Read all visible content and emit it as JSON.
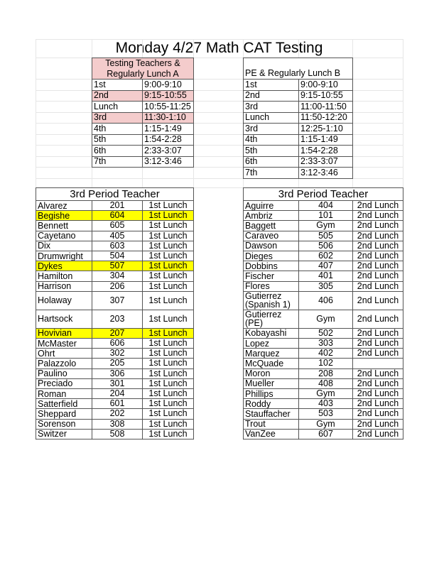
{
  "title": "Monday 4/27 Math CAT Testing",
  "colors": {
    "testing_highlight": "#f4cccc",
    "row_highlight": "#ffff00",
    "border": "#555555"
  },
  "schedule_a": {
    "header": "Testing Teachers & Regularly Lunch A",
    "rows": [
      {
        "period": "1st",
        "time": "9:00-9:10",
        "highlight": false
      },
      {
        "period": "2nd",
        "time": "9:15-10:55",
        "highlight": true
      },
      {
        "period": "Lunch",
        "time": "10:55-11:25",
        "highlight": false
      },
      {
        "period": "3rd",
        "time": "11:30-1:10",
        "highlight": true
      },
      {
        "period": "4th",
        "time": "1:15-1:49",
        "highlight": false
      },
      {
        "period": "5th",
        "time": "1:54-2:28",
        "highlight": false
      },
      {
        "period": "6th",
        "time": "2:33-3:07",
        "highlight": false
      },
      {
        "period": "7th",
        "time": "3:12-3:46",
        "highlight": false
      }
    ]
  },
  "schedule_b": {
    "header": "PE & Regularly Lunch B",
    "rows": [
      {
        "period": "1st",
        "time": "9:00-9:10"
      },
      {
        "period": "2nd",
        "time": "9:15-10:55"
      },
      {
        "period": "3rd",
        "time": "11:00-11:50"
      },
      {
        "period": "Lunch",
        "time": "11:50-12:20"
      },
      {
        "period": "3rd",
        "time": "12:25-1:10"
      },
      {
        "period": "4th",
        "time": "1:15-1:49"
      },
      {
        "period": "5th",
        "time": "1:54-2:28"
      },
      {
        "period": "6th",
        "time": "2:33-3:07"
      },
      {
        "period": "7th",
        "time": "3:12-3:46"
      }
    ]
  },
  "teachers_left": {
    "header": "3rd Period Teacher",
    "rows": [
      {
        "name": "Alvarez",
        "room": "201",
        "lunch": "1st Lunch"
      },
      {
        "name": "Begishe",
        "room": "604",
        "lunch": "1st Lunch",
        "highlight": true
      },
      {
        "name": "Bennett",
        "room": "605",
        "lunch": "1st Lunch"
      },
      {
        "name": "Cayetano",
        "room": "405",
        "lunch": "1st Lunch"
      },
      {
        "name": "Dix",
        "room": "603",
        "lunch": "1st Lunch"
      },
      {
        "name": "Drumwright",
        "room": "504",
        "lunch": "1st Lunch"
      },
      {
        "name": "Dykes",
        "room": "507",
        "lunch": "1st Lunch",
        "highlight": true
      },
      {
        "name": "Hamilton",
        "room": "304",
        "lunch": "1st Lunch"
      },
      {
        "name": "Harrison",
        "room": "206",
        "lunch": "1st Lunch"
      },
      {
        "name": "Holaway",
        "room": "307",
        "lunch": "1st Lunch",
        "tall": true
      },
      {
        "name": "Hartsock",
        "room": "203",
        "lunch": "1st Lunch",
        "tall": true
      },
      {
        "name": "Hovivian",
        "room": "207",
        "lunch": "1st Lunch",
        "highlight": true
      },
      {
        "name": "McMaster",
        "room": "606",
        "lunch": "1st Lunch"
      },
      {
        "name": "Ohrt",
        "room": "302",
        "lunch": "1st Lunch"
      },
      {
        "name": "Palazzolo",
        "room": "205",
        "lunch": "1st Lunch"
      },
      {
        "name": "Paulino",
        "room": "306",
        "lunch": "1st Lunch"
      },
      {
        "name": "Preciado",
        "room": "301",
        "lunch": "1st Lunch"
      },
      {
        "name": "Roman",
        "room": "204",
        "lunch": "1st Lunch"
      },
      {
        "name": "Satterfield",
        "room": "601",
        "lunch": "1st Lunch"
      },
      {
        "name": "Sheppard",
        "room": "202",
        "lunch": "1st Lunch"
      },
      {
        "name": "Sorenson",
        "room": "308",
        "lunch": "1st Lunch"
      },
      {
        "name": "Switzer",
        "room": "508",
        "lunch": "1st Lunch"
      }
    ]
  },
  "teachers_right": {
    "header": "3rd Period Teacher",
    "rows": [
      {
        "name": "Aguirre",
        "room": "404",
        "lunch": "2nd Lunch"
      },
      {
        "name": "Ambriz",
        "room": "101",
        "lunch": "2nd Lunch"
      },
      {
        "name": "Baggett",
        "room": "Gym",
        "lunch": "2nd Lunch"
      },
      {
        "name": "Caraveo",
        "room": "505",
        "lunch": "2nd Lunch"
      },
      {
        "name": "Dawson",
        "room": "506",
        "lunch": "2nd Lunch"
      },
      {
        "name": "Dieges",
        "room": "602",
        "lunch": "2nd Lunch"
      },
      {
        "name": "Dobbins",
        "room": "407",
        "lunch": "2nd Lunch"
      },
      {
        "name": "Fischer",
        "room": "401",
        "lunch": "2nd Lunch"
      },
      {
        "name": "Flores",
        "room": "305",
        "lunch": "2nd Lunch"
      },
      {
        "name": "Gutierrez (Spanish 1)",
        "room": "406",
        "lunch": "2nd Lunch",
        "tall": true
      },
      {
        "name": "Gutierrez (PE)",
        "room": "Gym",
        "lunch": "2nd Lunch",
        "tall": true
      },
      {
        "name": "Kobayashi",
        "room": "502",
        "lunch": "2nd Lunch"
      },
      {
        "name": "Lopez",
        "room": "303",
        "lunch": "2nd Lunch"
      },
      {
        "name": "Marquez",
        "room": "402",
        "lunch": "2nd Lunch"
      },
      {
        "name": "McQuade",
        "room": "102",
        "lunch": ""
      },
      {
        "name": "Moron",
        "room": "208",
        "lunch": "2nd Lunch"
      },
      {
        "name": "Mueller",
        "room": "408",
        "lunch": "2nd Lunch"
      },
      {
        "name": "Phillips",
        "room": "Gym",
        "lunch": "2nd Lunch"
      },
      {
        "name": "Roddy",
        "room": "403",
        "lunch": "2nd Lunch"
      },
      {
        "name": "Stauffacher",
        "room": "503",
        "lunch": "2nd Lunch"
      },
      {
        "name": "Trout",
        "room": "Gym",
        "lunch": "2nd Lunch"
      },
      {
        "name": "VanZee",
        "room": "607",
        "lunch": "2nd Lunch"
      }
    ]
  }
}
